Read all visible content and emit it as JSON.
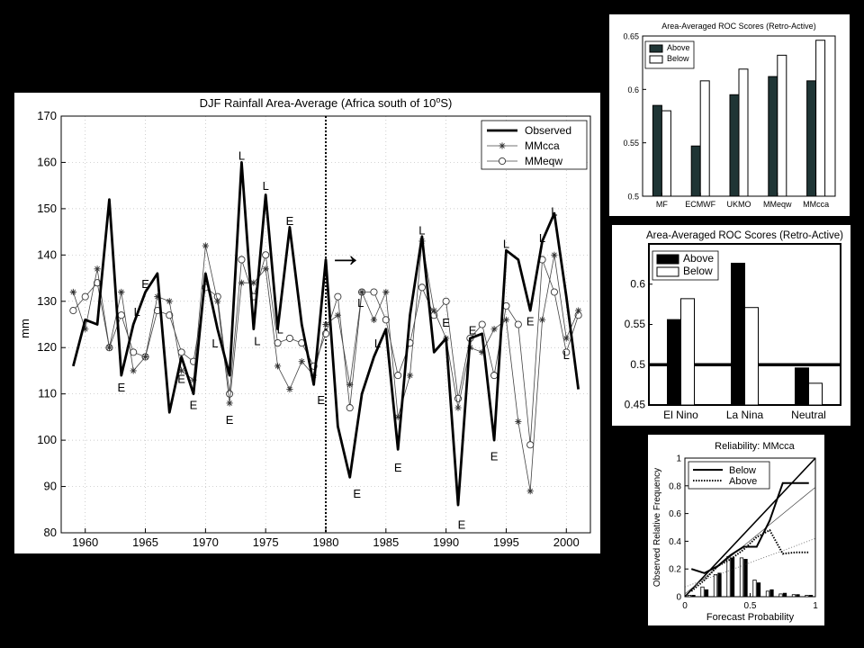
{
  "chart_data": [
    {
      "id": "main",
      "type": "line",
      "title": "DJF Rainfall Area-Average (Africa south of 10",
      "title_sup": "o",
      "title_tail": "S)",
      "ylabel": "mm",
      "xlim": [
        1958,
        2002
      ],
      "ylim": [
        80,
        170
      ],
      "xticks": [
        1960,
        1965,
        1970,
        1975,
        1980,
        1985,
        1990,
        1995,
        2000
      ],
      "yticks": [
        80,
        90,
        100,
        110,
        120,
        130,
        140,
        150,
        160,
        170
      ],
      "grid": true,
      "legend_position": "top-right",
      "divider_year": 1980,
      "arrow_glyph": "→",
      "series": [
        {
          "name": "Observed",
          "style": "thick",
          "x": [
            1959,
            1960,
            1961,
            1962,
            1963,
            1964,
            1965,
            1966,
            1967,
            1968,
            1969,
            1970,
            1971,
            1972,
            1973,
            1974,
            1975,
            1976,
            1977,
            1978,
            1979,
            1980,
            1981,
            1982,
            1983,
            1984,
            1985,
            1986,
            1987,
            1988,
            1989,
            1990,
            1991,
            1992,
            1993,
            1994,
            1995,
            1996,
            1997,
            1998,
            1999,
            2000,
            2001
          ],
          "values": [
            116,
            126,
            125,
            152,
            114,
            125,
            132,
            136,
            106,
            118,
            110,
            136,
            124,
            114,
            160,
            124,
            153,
            124,
            146,
            125,
            112,
            139,
            103,
            92,
            110,
            118,
            124,
            98,
            127,
            144,
            119,
            122,
            86,
            122,
            123,
            100,
            141,
            139,
            128,
            143,
            149,
            131,
            111
          ]
        },
        {
          "name": "MMcca",
          "style": "star",
          "x": [
            1959,
            1960,
            1961,
            1962,
            1963,
            1964,
            1965,
            1966,
            1967,
            1968,
            1969,
            1970,
            1971,
            1972,
            1973,
            1974,
            1975,
            1976,
            1977,
            1978,
            1979,
            1980,
            1981,
            1982,
            1983,
            1984,
            1985,
            1986,
            1987,
            1988,
            1989,
            1990,
            1991,
            1992,
            1993,
            1994,
            1995,
            1996,
            1997,
            1998,
            1999,
            2000,
            2001
          ],
          "values": [
            132,
            124,
            137,
            120,
            132,
            115,
            118,
            131,
            130,
            115,
            113,
            142,
            130,
            108,
            134,
            134,
            137,
            116,
            111,
            117,
            114,
            125,
            127,
            112,
            132,
            126,
            132,
            105,
            114,
            143,
            128,
            122,
            107,
            120,
            119,
            124,
            126,
            104,
            89,
            126,
            140,
            122,
            128
          ]
        },
        {
          "name": "MMeqw",
          "style": "circle",
          "x": [
            1959,
            1960,
            1961,
            1962,
            1963,
            1964,
            1965,
            1966,
            1967,
            1968,
            1969,
            1970,
            1971,
            1972,
            1973,
            1974,
            1975,
            1976,
            1977,
            1978,
            1979,
            1980,
            1981,
            1982,
            1983,
            1984,
            1985,
            1986,
            1987,
            1988,
            1989,
            1990,
            1991,
            1992,
            1993,
            1994,
            1995,
            1996,
            1997,
            1998,
            1999,
            2000,
            2001
          ],
          "values": [
            128,
            131,
            134,
            120,
            127,
            119,
            118,
            128,
            127,
            119,
            117,
            133,
            131,
            110,
            139,
            131,
            140,
            121,
            122,
            121,
            116,
            123,
            131,
            107,
            132,
            132,
            126,
            114,
            121,
            133,
            127,
            130,
            109,
            122,
            125,
            114,
            129,
            125,
            99,
            139,
            132,
            119,
            127
          ]
        }
      ],
      "annotations": [
        {
          "text": "L",
          "x": 1973,
          "y": 161.5
        },
        {
          "text": "L",
          "x": 1975,
          "y": 155
        },
        {
          "text": "E",
          "x": 1977,
          "y": 147.5
        },
        {
          "text": "E",
          "x": 1965,
          "y": 133.8
        },
        {
          "text": "L",
          "x": 1964.3,
          "y": 127.8
        },
        {
          "text": "L",
          "x": 1974.3,
          "y": 121.5
        },
        {
          "text": "L",
          "x": 1970.8,
          "y": 121
        },
        {
          "text": "L",
          "x": 1976.2,
          "y": 124
        },
        {
          "text": "E",
          "x": 1963,
          "y": 111.5
        },
        {
          "text": "E",
          "x": 1968,
          "y": 113.3
        },
        {
          "text": "E",
          "x": 1969,
          "y": 107.7
        },
        {
          "text": "E",
          "x": 1972,
          "y": 104.5
        },
        {
          "text": "E",
          "x": 1979.6,
          "y": 108.8
        },
        {
          "text": "E",
          "x": 1982.6,
          "y": 88.6
        },
        {
          "text": "L",
          "x": 1982.9,
          "y": 129.8
        },
        {
          "text": "L",
          "x": 1984.3,
          "y": 121
        },
        {
          "text": "E",
          "x": 1986,
          "y": 94.2
        },
        {
          "text": "L",
          "x": 1988,
          "y": 145.4
        },
        {
          "text": "E",
          "x": 1990,
          "y": 125.5
        },
        {
          "text": "E",
          "x": 1992.2,
          "y": 123.8
        },
        {
          "text": "E",
          "x": 1991.3,
          "y": 81.8
        },
        {
          "text": "E",
          "x": 1994,
          "y": 96.6
        },
        {
          "text": "L",
          "x": 1995,
          "y": 142.5
        },
        {
          "text": "E",
          "x": 1997,
          "y": 125.8
        },
        {
          "text": "L",
          "x": 1998,
          "y": 143.8
        },
        {
          "text": "L",
          "x": 1999,
          "y": 149.5
        },
        {
          "text": "L",
          "x": 2000,
          "y": 118.5
        }
      ]
    },
    {
      "id": "roc1",
      "type": "bar",
      "title": "Area-Averaged ROC Scores (Retro-Active)",
      "categories": [
        "MF",
        "ECMWF",
        "UKMO",
        "MMeqw",
        "MMcca"
      ],
      "series": [
        {
          "name": "Above",
          "values": [
            0.585,
            0.547,
            0.595,
            0.612,
            0.608
          ],
          "color": "#1f3535"
        },
        {
          "name": "Below",
          "values": [
            0.58,
            0.608,
            0.619,
            0.632,
            0.646
          ],
          "color": "#ffffff"
        }
      ],
      "ylim": [
        0.5,
        0.65
      ],
      "yticks": [
        0.5,
        0.55,
        0.6,
        0.65
      ],
      "legend_position": "top-left"
    },
    {
      "id": "roc2",
      "type": "bar",
      "title": "Area-Averaged ROC Scores (Retro-Active)",
      "categories": [
        "El Nino",
        "La Nina",
        "Neutral"
      ],
      "series": [
        {
          "name": "Above",
          "values": [
            0.556,
            0.626,
            0.496
          ],
          "color": "#000000"
        },
        {
          "name": "Below",
          "values": [
            0.582,
            0.571,
            0.477
          ],
          "color": "#ffffff"
        }
      ],
      "ylim": [
        0.45,
        0.65
      ],
      "yticks": [
        0.45,
        0.5,
        0.55,
        0.6
      ],
      "reference_line": 0.5,
      "legend_position": "top-left"
    },
    {
      "id": "reliability",
      "type": "line",
      "title": "Reliability: MMcca",
      "xlabel": "Forecast Probability",
      "ylabel": "Observed Relative Frequency",
      "xlim": [
        0,
        1
      ],
      "ylim": [
        0,
        1
      ],
      "xticks": [
        0,
        0.5,
        1
      ],
      "yticks": [
        0,
        0.2,
        0.4,
        0.6,
        0.8,
        1
      ],
      "legend_position": "top-left",
      "series": [
        {
          "name": "Below",
          "style": "solid",
          "x": [
            0.05,
            0.15,
            0.25,
            0.35,
            0.45,
            0.55,
            0.65,
            0.75,
            0.85,
            0.95
          ],
          "values": [
            0.2,
            0.17,
            0.22,
            0.3,
            0.36,
            0.36,
            0.55,
            0.82,
            0.82,
            0.82
          ]
        },
        {
          "name": "Above",
          "style": "dotted",
          "x": [
            0.05,
            0.15,
            0.25,
            0.35,
            0.45,
            0.55,
            0.65,
            0.75,
            0.85,
            0.95
          ],
          "values": [
            0.04,
            0.12,
            0.22,
            0.27,
            0.34,
            0.43,
            0.48,
            0.31,
            0.32,
            0.32
          ]
        }
      ],
      "fit_lines": [
        {
          "of": "Below",
          "from": [
            0,
            0.02
          ],
          "to": [
            1,
            0.79
          ]
        },
        {
          "of": "Above",
          "from": [
            0,
            0.07
          ],
          "to": [
            1,
            0.42
          ]
        }
      ],
      "histogram": {
        "x": [
          0.05,
          0.15,
          0.25,
          0.35,
          0.45,
          0.55,
          0.65,
          0.75,
          0.85,
          0.95
        ],
        "below": [
          0.01,
          0.07,
          0.16,
          0.29,
          0.28,
          0.12,
          0.04,
          0.02,
          0.015,
          0.01
        ],
        "above": [
          0.01,
          0.05,
          0.17,
          0.28,
          0.27,
          0.1,
          0.05,
          0.025,
          0.015,
          0.01
        ]
      }
    }
  ]
}
